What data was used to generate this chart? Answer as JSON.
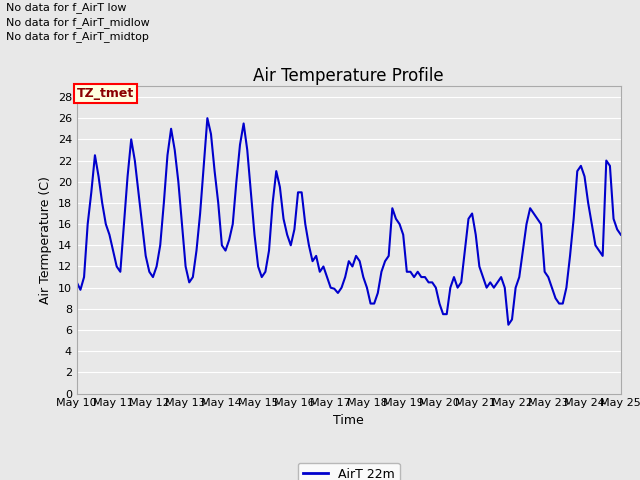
{
  "title": "Air Temperature Profile",
  "xlabel": "Time",
  "ylabel": "Air Termperature (C)",
  "line_color": "#0000CC",
  "line_width": 1.5,
  "ylim": [
    0,
    29
  ],
  "yticks": [
    0,
    2,
    4,
    6,
    8,
    10,
    12,
    14,
    16,
    18,
    20,
    22,
    24,
    26,
    28
  ],
  "xtick_labels": [
    "May 10",
    "May 11",
    "May 12",
    "May 13",
    "May 14",
    "May 15",
    "May 16",
    "May 17",
    "May 18",
    "May 19",
    "May 20",
    "May 21",
    "May 22",
    "May 23",
    "May 24",
    "May 25"
  ],
  "legend_label": "AirT 22m",
  "legend_color": "#0000CC",
  "annotations": [
    "No data for f_AirT low",
    "No data for f_AirT_midlow",
    "No data for f_AirT_midtop"
  ],
  "tz_label": "TZ_tmet",
  "bg_color": "#e8e8e8",
  "grid_color": "#ffffff",
  "x_values": [
    0,
    0.1,
    0.2,
    0.3,
    0.4,
    0.5,
    0.6,
    0.7,
    0.8,
    0.9,
    1.0,
    1.1,
    1.2,
    1.3,
    1.4,
    1.5,
    1.6,
    1.7,
    1.8,
    1.9,
    2.0,
    2.1,
    2.2,
    2.3,
    2.4,
    2.5,
    2.6,
    2.7,
    2.8,
    2.9,
    3.0,
    3.1,
    3.2,
    3.3,
    3.4,
    3.5,
    3.6,
    3.7,
    3.8,
    3.9,
    4.0,
    4.1,
    4.2,
    4.3,
    4.4,
    4.5,
    4.6,
    4.7,
    4.8,
    4.9,
    5.0,
    5.1,
    5.2,
    5.3,
    5.4,
    5.5,
    5.6,
    5.7,
    5.8,
    5.9,
    6.0,
    6.1,
    6.2,
    6.3,
    6.4,
    6.5,
    6.6,
    6.7,
    6.8,
    6.9,
    7.0,
    7.1,
    7.2,
    7.3,
    7.4,
    7.5,
    7.6,
    7.7,
    7.8,
    7.9,
    8.0,
    8.1,
    8.2,
    8.3,
    8.4,
    8.5,
    8.6,
    8.7,
    8.8,
    8.9,
    9.0,
    9.1,
    9.2,
    9.3,
    9.4,
    9.5,
    9.6,
    9.7,
    9.8,
    9.9,
    10.0,
    10.1,
    10.2,
    10.3,
    10.4,
    10.5,
    10.6,
    10.7,
    10.8,
    10.9,
    11.0,
    11.1,
    11.2,
    11.3,
    11.4,
    11.5,
    11.6,
    11.7,
    11.8,
    11.9,
    12.0,
    12.1,
    12.2,
    12.3,
    12.4,
    12.5,
    12.6,
    12.7,
    12.8,
    12.9,
    13.0,
    13.1,
    13.2,
    13.3,
    13.4,
    13.5,
    13.6,
    13.7,
    13.8,
    13.9,
    14.0,
    14.1,
    14.2,
    14.3,
    14.4,
    14.5,
    14.6,
    14.7,
    14.8,
    14.9,
    15.0
  ],
  "y_values": [
    10.5,
    9.8,
    11.0,
    16.0,
    19.0,
    22.5,
    20.5,
    18.0,
    16.0,
    15.0,
    13.5,
    12.0,
    11.5,
    16.0,
    20.5,
    24.0,
    22.0,
    19.0,
    16.0,
    13.0,
    11.5,
    11.0,
    12.0,
    14.0,
    18.0,
    22.5,
    25.0,
    23.0,
    20.0,
    16.0,
    12.0,
    10.5,
    11.0,
    13.5,
    17.0,
    21.5,
    26.0,
    24.5,
    21.0,
    18.0,
    14.0,
    13.5,
    14.5,
    16.0,
    20.0,
    23.5,
    25.5,
    23.0,
    19.0,
    15.0,
    12.0,
    11.0,
    11.5,
    13.5,
    18.0,
    21.0,
    19.5,
    16.5,
    15.0,
    14.0,
    15.5,
    19.0,
    19.0,
    16.0,
    14.0,
    12.5,
    13.0,
    11.5,
    12.0,
    11.0,
    10.0,
    9.9,
    9.5,
    10.0,
    11.0,
    12.5,
    12.0,
    13.0,
    12.5,
    11.0,
    10.0,
    8.5,
    8.5,
    9.5,
    11.5,
    12.5,
    13.0,
    17.5,
    16.5,
    16.0,
    15.0,
    11.5,
    11.5,
    11.0,
    11.5,
    11.0,
    11.0,
    10.5,
    10.5,
    10.0,
    8.5,
    7.5,
    7.5,
    10.0,
    11.0,
    10.0,
    10.5,
    13.5,
    16.5,
    17.0,
    15.0,
    12.0,
    11.0,
    10.0,
    10.5,
    10.0,
    10.5,
    11.0,
    10.0,
    6.5,
    7.0,
    10.0,
    11.0,
    13.5,
    16.0,
    17.5,
    17.0,
    16.5,
    16.0,
    11.5,
    11.0,
    10.0,
    9.0,
    8.5,
    8.5,
    10.0,
    13.0,
    16.5,
    21.0,
    21.5,
    20.5,
    18.0,
    16.0,
    14.0,
    13.5,
    13.0,
    22.0,
    21.5,
    16.5,
    15.5,
    15.0
  ]
}
